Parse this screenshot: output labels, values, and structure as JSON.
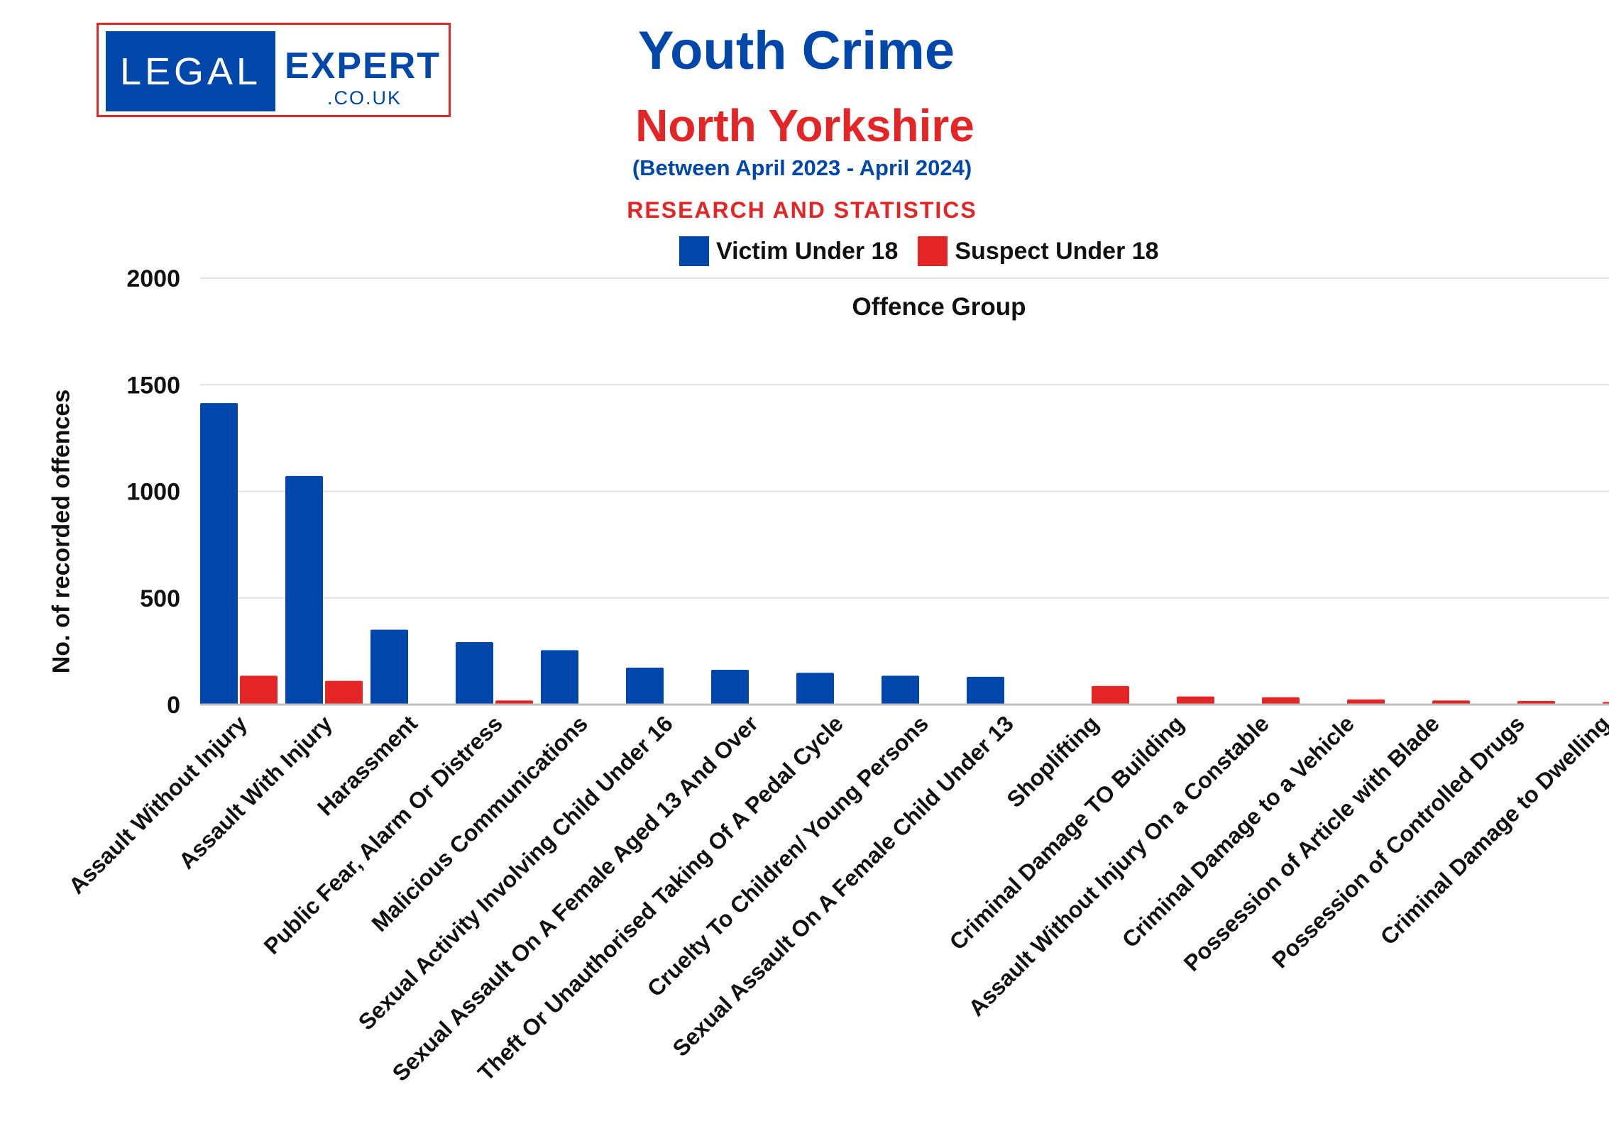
{
  "logo": {
    "left": "LEGAL",
    "right": "EXPERT",
    "domain": ".CO.UK"
  },
  "header": {
    "title": "Youth Crime",
    "subtitle": "North Yorkshire",
    "period": "(Between April 2023 - April 2024)",
    "tagline": "RESEARCH AND STATISTICS"
  },
  "colors": {
    "victim": "#0047ab",
    "suspect": "#e32526"
  },
  "chart_data": {
    "type": "bar",
    "title": "Offence Group",
    "xlabel": "",
    "ylabel": "No. of recorded offences",
    "ylim": [
      0,
      2000
    ],
    "yticks": [
      "0",
      "500",
      "1000",
      "1500",
      "2000"
    ],
    "grid": true,
    "legend_position": "top-center",
    "categories": [
      "Assault Without Injury",
      "Assault With Injury",
      "Harassment",
      "Public Fear, Alarm Or Distress",
      "Malicious Communications",
      "Sexual Activity Involving Child Under 16",
      "Sexual Assault On A Female Aged 13 And Over",
      "Theft Or Unauthorised Taking Of A Pedal Cycle",
      "Cruelty To Children/ Young Persons",
      "Sexual Assault On A Female Child Under 13",
      "Shoplifting",
      "Criminal Damage TO Building",
      "Assault Without Injury On a Constable",
      "Criminal Damage to a Vehicle",
      "Possession of Article with Blade",
      "Possession of Controlled Drugs",
      "Criminal Damage to Dwelling"
    ],
    "series": [
      {
        "name": "Victim Under 18",
        "values": [
          1414,
          1072,
          351,
          293,
          255,
          173,
          163,
          149,
          135,
          130,
          0,
          0,
          0,
          0,
          0,
          0,
          0
        ]
      },
      {
        "name": "Suspect Under 18",
        "values": [
          135,
          111,
          0,
          19,
          0,
          0,
          0,
          0,
          0,
          0,
          87,
          38,
          34,
          24,
          19,
          17,
          12
        ]
      }
    ]
  }
}
